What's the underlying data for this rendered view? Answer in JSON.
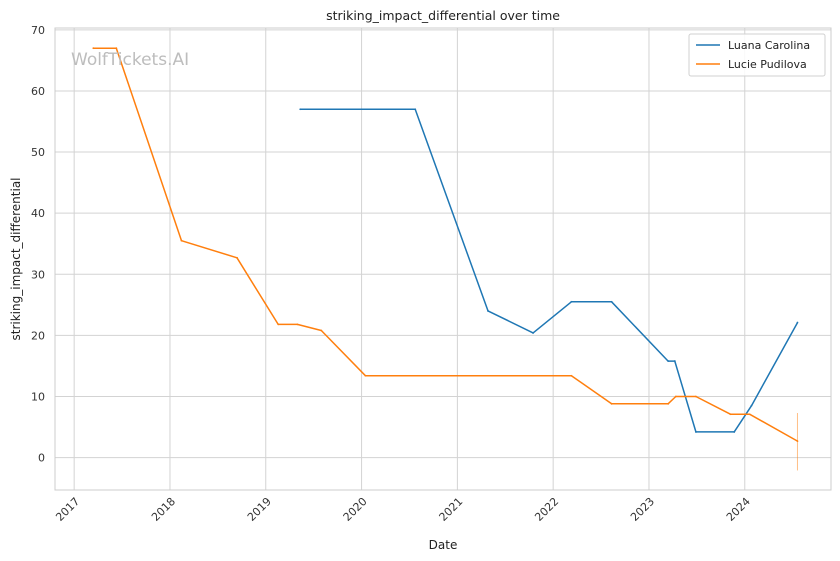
{
  "chart_data": {
    "type": "line",
    "title": "striking_impact_differential over time",
    "xlabel": "Date",
    "ylabel": "striking_impact_differential",
    "watermark": "WolfTickets.AI",
    "xlim": [
      2016.8,
      2024.9
    ],
    "ylim": [
      -5.3,
      70.3
    ],
    "x_ticks": [
      "2017",
      "2018",
      "2019",
      "2020",
      "2021",
      "2022",
      "2023",
      "2024"
    ],
    "y_ticks": [
      "0",
      "10",
      "20",
      "30",
      "40",
      "50",
      "60",
      "70"
    ],
    "grid": true,
    "legend_position": "top-right",
    "series": [
      {
        "name": "Luana Carolina",
        "color": "#1f77b4",
        "x": [
          2019.36,
          2020.56,
          2021.32,
          2021.79,
          2022.19,
          2022.61,
          2023.2,
          2023.27,
          2023.49,
          2023.89,
          2024.07,
          2024.55
        ],
        "y": [
          57,
          57,
          24,
          20.4,
          25.5,
          25.5,
          15.8,
          15.8,
          4.2,
          4.2,
          8.5,
          22.1
        ]
      },
      {
        "name": "Lucie Pudilova",
        "color": "#ff7f0e",
        "x": [
          2017.2,
          2017.44,
          2018.12,
          2018.7,
          2019.13,
          2019.33,
          2019.58,
          2020.04,
          2022.19,
          2022.61,
          2023.2,
          2023.28,
          2023.49,
          2023.85,
          2024.05,
          2024.55
        ],
        "y": [
          67,
          67,
          35.5,
          32.7,
          21.8,
          21.8,
          20.8,
          13.4,
          13.4,
          8.8,
          8.8,
          10,
          10,
          7.1,
          7.1,
          2.7
        ]
      }
    ],
    "annotations": [
      {
        "type": "error_bar",
        "series": "Lucie Pudilova",
        "x": 2024.55,
        "y_low": -2.1,
        "y_high": 7.3
      }
    ]
  }
}
